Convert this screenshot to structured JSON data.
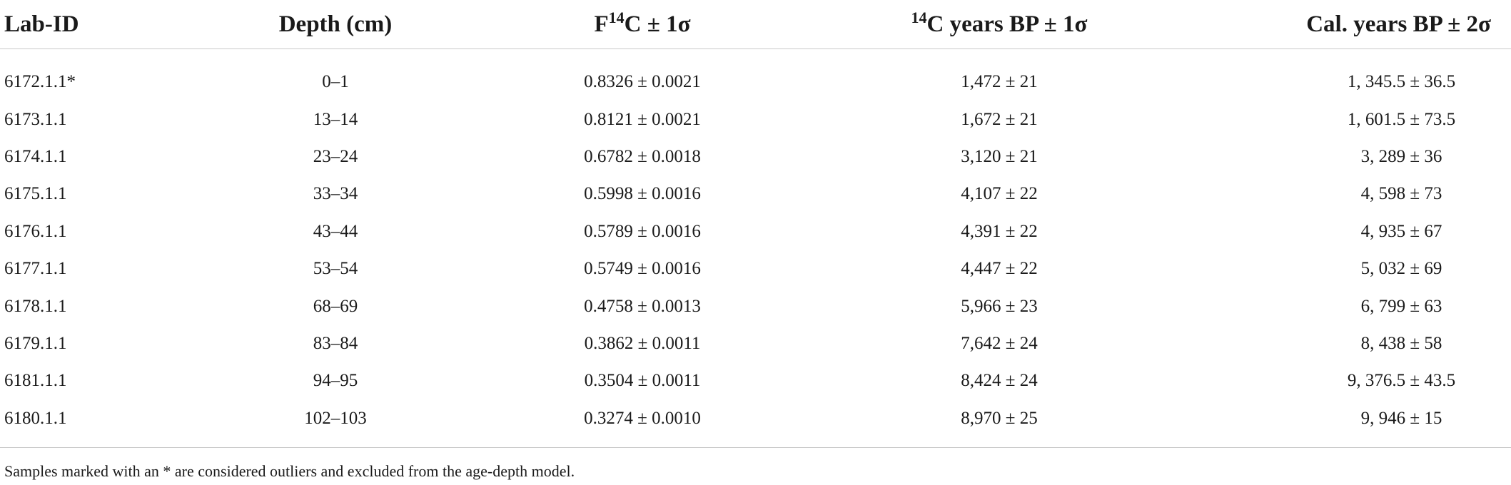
{
  "table": {
    "headers": [
      {
        "text": "Lab-ID"
      },
      {
        "text": "Depth (cm)"
      },
      {
        "pre": "F",
        "sup": "14",
        "post": "C ± 1σ"
      },
      {
        "pre": "",
        "sup": "14",
        "post": "C years BP ± 1σ"
      },
      {
        "text": "Cal. years BP ± 2σ"
      }
    ],
    "rows": [
      [
        "6172.1.1*",
        "0–1",
        "0.8326 ± 0.0021",
        "1,472 ± 21",
        "1, 345.5 ± 36.5"
      ],
      [
        "6173.1.1",
        "13–14",
        "0.8121 ± 0.0021",
        "1,672 ± 21",
        "1, 601.5 ± 73.5"
      ],
      [
        "6174.1.1",
        "23–24",
        "0.6782 ± 0.0018",
        "3,120 ± 21",
        "3, 289 ± 36"
      ],
      [
        "6175.1.1",
        "33–34",
        "0.5998 ± 0.0016",
        "4,107 ± 22",
        "4, 598 ± 73"
      ],
      [
        "6176.1.1",
        "43–44",
        "0.5789 ± 0.0016",
        "4,391 ± 22",
        "4, 935 ± 67"
      ],
      [
        "6177.1.1",
        "53–54",
        "0.5749 ± 0.0016",
        "4,447 ± 22",
        "5, 032 ± 69"
      ],
      [
        "6178.1.1",
        "68–69",
        "0.4758 ± 0.0013",
        "5,966 ± 23",
        "6, 799 ± 63"
      ],
      [
        "6179.1.1",
        "83–84",
        "0.3862 ± 0.0011",
        "7,642 ± 24",
        "8, 438 ± 58"
      ],
      [
        "6181.1.1",
        "94–95",
        "0.3504 ± 0.0011",
        "8,424 ± 24",
        "9, 376.5 ± 43.5"
      ],
      [
        "6180.1.1",
        "102–103",
        "0.3274 ± 0.0010",
        "8,970 ± 25",
        "9, 946 ± 15"
      ]
    ]
  },
  "footnote": "Samples marked with an * are considered outliers and excluded from the age-depth model."
}
